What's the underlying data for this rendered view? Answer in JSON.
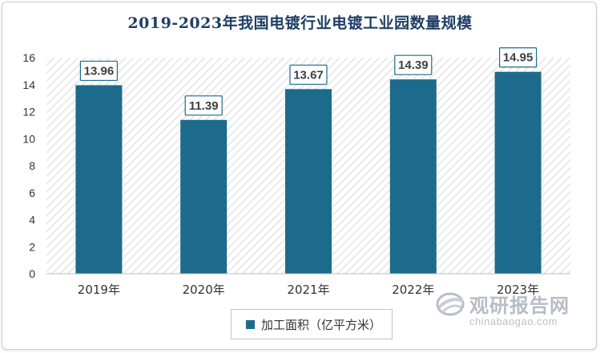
{
  "chart_data": {
    "type": "bar",
    "title": "2019-2023年我国电镀行业电镀工业园数量规模",
    "categories": [
      "2019年",
      "2020年",
      "2021年",
      "2022年",
      "2023年"
    ],
    "series": [
      {
        "name": "加工面积（亿平方米）",
        "values": [
          13.96,
          11.39,
          13.67,
          14.39,
          14.95
        ]
      }
    ],
    "ylim": [
      0,
      16
    ],
    "yticks": [
      0,
      2,
      4,
      6,
      8,
      10,
      12,
      14,
      16
    ],
    "grid": false,
    "legend_position": "bottom",
    "colors": {
      "bar": "#1d6b8c",
      "title": "#1f3f66",
      "plot_hatch": "#e6e6e6"
    }
  },
  "watermark": {
    "text_cn": "观研报告网",
    "text_en": "chinabaogao.com",
    "icon": "globe-logo-icon"
  }
}
